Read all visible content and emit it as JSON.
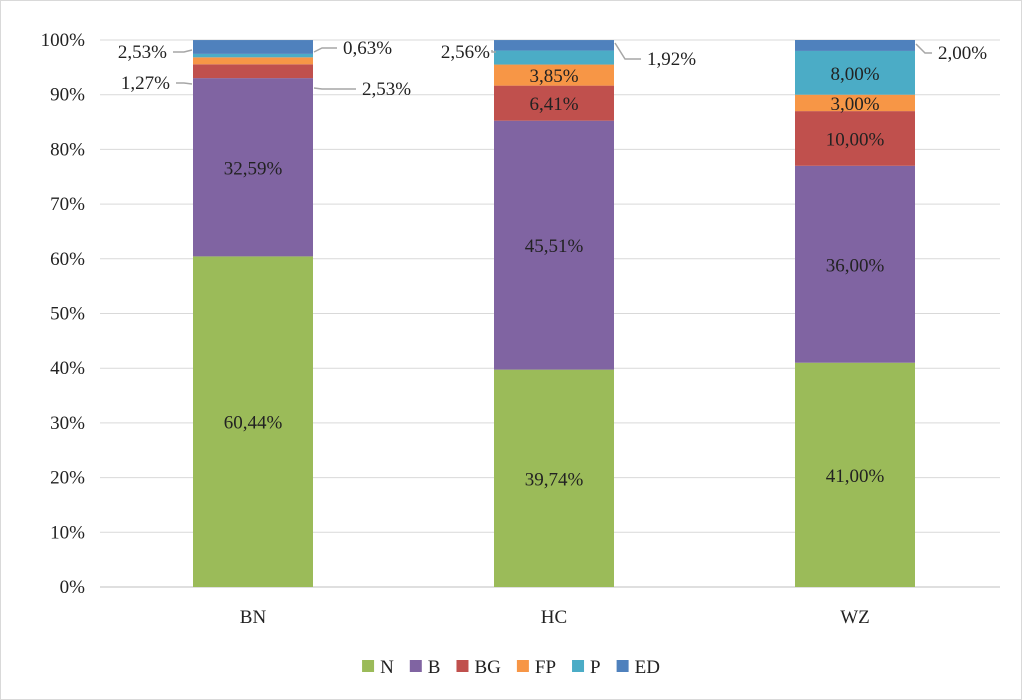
{
  "chart_data": {
    "type": "bar",
    "stacked": true,
    "percent": true,
    "categories": [
      "BN",
      "HC",
      "WZ"
    ],
    "ylim": [
      0,
      100
    ],
    "yticks": [
      "0%",
      "10%",
      "20%",
      "30%",
      "40%",
      "50%",
      "60%",
      "70%",
      "80%",
      "90%",
      "100%"
    ],
    "grid": true,
    "legend_position": "bottom",
    "series": [
      {
        "name": "N",
        "color": "#9BBB59",
        "values": [
          60.44,
          39.74,
          41.0
        ],
        "labels": [
          "60,44%",
          "39,74%",
          "41,00%"
        ]
      },
      {
        "name": "B",
        "color": "#8064A2",
        "values": [
          32.59,
          45.51,
          36.0
        ],
        "labels": [
          "32,59%",
          "45,51%",
          "36,00%"
        ]
      },
      {
        "name": "BG",
        "color": "#C0504D",
        "values": [
          2.53,
          6.41,
          10.0
        ],
        "labels": [
          "2,53%",
          "6,41%",
          "10,00%"
        ]
      },
      {
        "name": "FP",
        "color": "#F79646",
        "values": [
          1.27,
          3.85,
          3.0
        ],
        "labels": [
          "1,27%",
          "3,85%",
          "3,00%"
        ]
      },
      {
        "name": "P",
        "color": "#4BACC6",
        "values": [
          0.63,
          2.56,
          8.0
        ],
        "labels": [
          "0,63%",
          "2,56%",
          "8,00%"
        ]
      },
      {
        "name": "ED",
        "color": "#4F81BD",
        "values": [
          2.53,
          1.92,
          2.0
        ],
        "labels": [
          "2,53%",
          "1,92%",
          "2,00%"
        ]
      }
    ]
  }
}
